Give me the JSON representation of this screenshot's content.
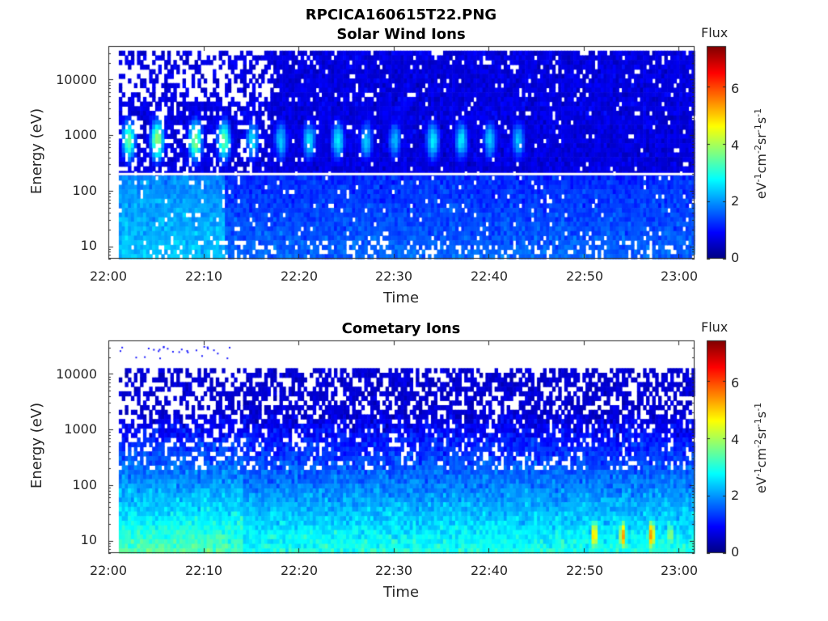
{
  "figure_title": "RPCICA160615T22.PNG",
  "chart_data": [
    {
      "type": "heatmap",
      "title": "Solar Wind Ions",
      "xlabel": "Time",
      "ylabel": "Energy (eV)",
      "x_start": "22:00",
      "x_end": "23:01",
      "xtick_labels": [
        "22:00",
        "22:10",
        "22:20",
        "22:30",
        "22:40",
        "22:50",
        "23:00"
      ],
      "ytick_labels": [
        "10",
        "100",
        "1000",
        "10000"
      ],
      "yscale": "log",
      "ylim": [
        6,
        40000
      ],
      "colorbar": {
        "title": "Flux",
        "unit": "eV-1cm-2sr-1s-1",
        "ticks": [
          "0",
          "2",
          "4",
          "6"
        ],
        "range": [
          0,
          7.4
        ],
        "colormap": "jet"
      },
      "features": {
        "solar_wind_peak_energy_eV": 800,
        "burst_times": [
          "22:02",
          "22:05",
          "22:09",
          "22:12",
          "22:15",
          "22:18",
          "22:21",
          "22:24",
          "22:27",
          "22:30",
          "22:34",
          "22:37",
          "22:40",
          "22:43"
        ],
        "burst_peak_flux": [
          3.6,
          4.0,
          3.8,
          3.6,
          2.6,
          2.4,
          2.6,
          2.7,
          2.4,
          2.2,
          2.7,
          2.6,
          2.4,
          2.3
        ],
        "gap_line_energy_eV": 200
      }
    },
    {
      "type": "heatmap",
      "title": "Cometary Ions",
      "xlabel": "Time",
      "ylabel": "Energy (eV)",
      "x_start": "22:00",
      "x_end": "23:01",
      "xtick_labels": [
        "22:00",
        "22:10",
        "22:20",
        "22:30",
        "22:40",
        "22:50",
        "23:00"
      ],
      "ytick_labels": [
        "10",
        "100",
        "1000",
        "10000"
      ],
      "yscale": "log",
      "ylim": [
        6,
        40000
      ],
      "colorbar": {
        "title": "Flux",
        "unit": "eV-1cm-2sr-1s-1",
        "ticks": [
          "0",
          "2",
          "4",
          "6"
        ],
        "range": [
          0,
          7.4
        ],
        "colormap": "jet"
      },
      "features": {
        "low_energy_band_eV": [
          6,
          60
        ],
        "max_flux_times": [
          "22:51",
          "22:54",
          "22:57",
          "22:59"
        ],
        "max_flux_values": [
          5.2,
          5.4,
          5.6,
          4.0
        ]
      }
    }
  ]
}
